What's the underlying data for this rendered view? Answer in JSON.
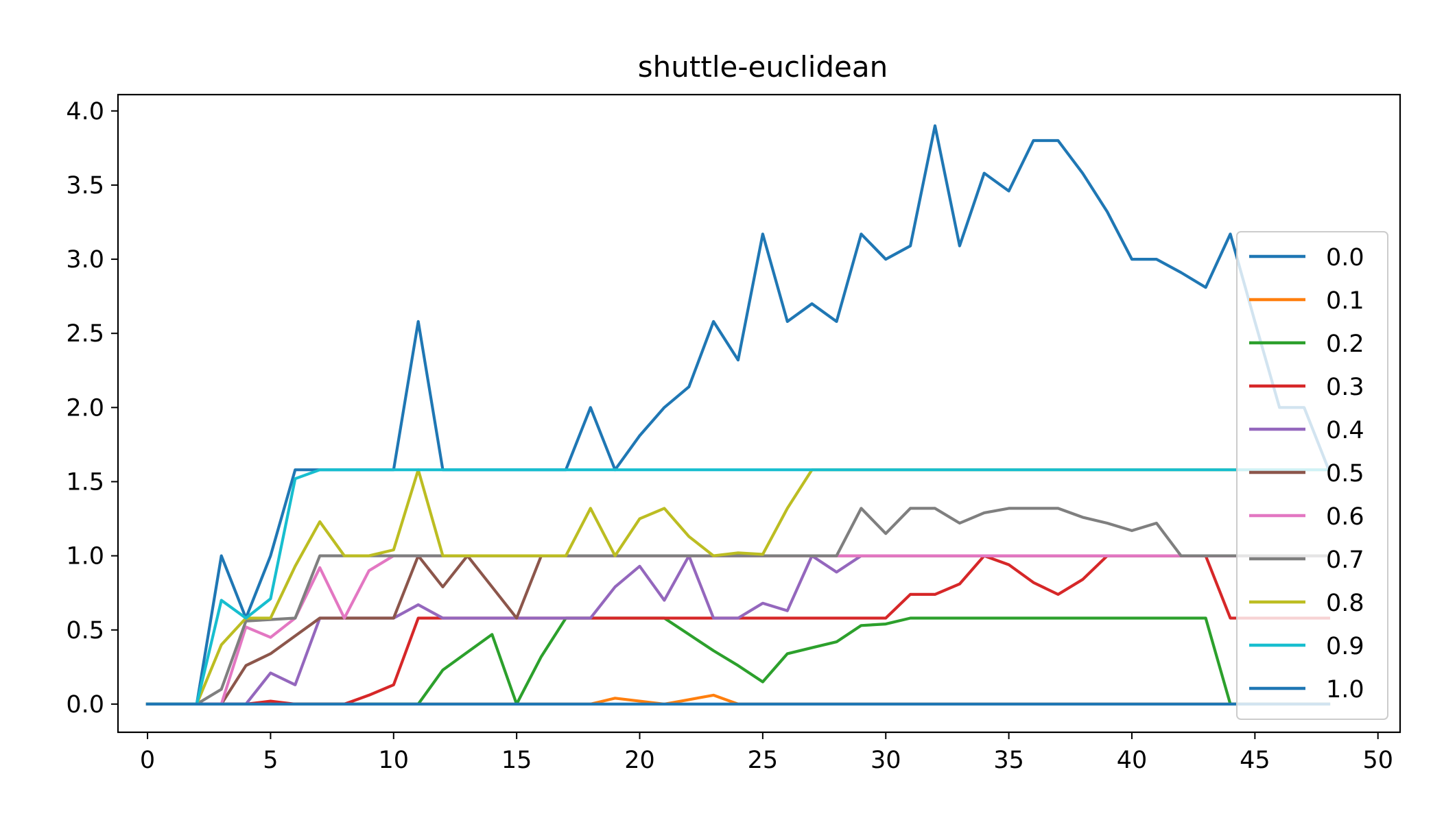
{
  "chart_data": {
    "type": "line",
    "title": "shuttle-euclidean",
    "xlabel": "",
    "ylabel": "",
    "xlim": [
      -1.2,
      50.9
    ],
    "ylim": [
      -0.19,
      4.11
    ],
    "xticks": [
      0,
      5,
      10,
      15,
      20,
      25,
      30,
      35,
      40,
      45,
      50
    ],
    "yticks": [
      0.0,
      0.5,
      1.0,
      1.5,
      2.0,
      2.5,
      3.0,
      3.5,
      4.0
    ],
    "ytick_labels": [
      "0.0",
      "0.5",
      "1.0",
      "1.5",
      "2.0",
      "2.5",
      "3.0",
      "3.5",
      "4.0"
    ],
    "legend_position": "right",
    "x": [
      0,
      1,
      2,
      3,
      4,
      5,
      6,
      7,
      8,
      9,
      10,
      11,
      12,
      13,
      14,
      15,
      16,
      17,
      18,
      19,
      20,
      21,
      22,
      23,
      24,
      25,
      26,
      27,
      28,
      29,
      30,
      31,
      32,
      33,
      34,
      35,
      36,
      37,
      38,
      39,
      40,
      41,
      42,
      43,
      44,
      45,
      46,
      47,
      48
    ],
    "series": [
      {
        "name": "0.0",
        "color": "#1f77b4",
        "values": [
          0,
          0,
          0,
          1.0,
          0.58,
          1.0,
          1.58,
          1.58,
          1.58,
          1.58,
          1.58,
          2.58,
          1.58,
          1.58,
          1.58,
          1.58,
          1.58,
          1.58,
          2.0,
          1.58,
          1.81,
          2.0,
          2.14,
          2.58,
          2.32,
          3.17,
          2.58,
          2.7,
          2.58,
          3.17,
          3.0,
          3.09,
          3.9,
          3.09,
          3.58,
          3.46,
          3.8,
          3.8,
          3.58,
          3.32,
          3.0,
          3.0,
          2.91,
          2.81,
          3.17,
          2.58,
          2.0,
          2.0,
          1.58
        ]
      },
      {
        "name": "0.1",
        "color": "#ff7f0e",
        "values": [
          0,
          0,
          0,
          0,
          0,
          0,
          0,
          0,
          0,
          0,
          0,
          0,
          0,
          0,
          0,
          0,
          0,
          0,
          0,
          0.04,
          0.02,
          0,
          0.03,
          0.06,
          0,
          0,
          0,
          0,
          0,
          0,
          0,
          0,
          0,
          0,
          0,
          0,
          0,
          0,
          0,
          0,
          0,
          0,
          0,
          0,
          0,
          0,
          0,
          0,
          0
        ]
      },
      {
        "name": "0.2",
        "color": "#2ca02c",
        "values": [
          0,
          0,
          0,
          0,
          0,
          0,
          0,
          0,
          0,
          0,
          0,
          0,
          0.23,
          0.35,
          0.47,
          0,
          0.32,
          0.58,
          0.58,
          0.58,
          0.58,
          0.58,
          0.47,
          0.36,
          0.26,
          0.15,
          0.34,
          0.38,
          0.42,
          0.53,
          0.54,
          0.58,
          0.58,
          0.58,
          0.58,
          0.58,
          0.58,
          0.58,
          0.58,
          0.58,
          0.58,
          0.58,
          0.58,
          0.58,
          0,
          0,
          0,
          0,
          0
        ]
      },
      {
        "name": "0.3",
        "color": "#d62728",
        "values": [
          0,
          0,
          0,
          0,
          0,
          0.02,
          0,
          0,
          0,
          0.06,
          0.13,
          0.58,
          0.58,
          0.58,
          0.58,
          0.58,
          0.58,
          0.58,
          0.58,
          0.58,
          0.58,
          0.58,
          0.58,
          0.58,
          0.58,
          0.58,
          0.58,
          0.58,
          0.58,
          0.58,
          0.58,
          0.74,
          0.74,
          0.81,
          1.0,
          0.94,
          0.82,
          0.74,
          0.84,
          1.0,
          1.0,
          1.0,
          1.0,
          1.0,
          0.58,
          0.58,
          0.58,
          0.58,
          0.58
        ]
      },
      {
        "name": "0.4",
        "color": "#9467bd",
        "values": [
          0,
          0,
          0,
          0,
          0,
          0.21,
          0.13,
          0.58,
          0.58,
          0.58,
          0.58,
          0.67,
          0.58,
          0.58,
          0.58,
          0.58,
          0.58,
          0.58,
          0.58,
          0.79,
          0.93,
          0.7,
          1.0,
          0.58,
          0.58,
          0.68,
          0.63,
          1.0,
          0.89,
          1.0,
          1.0,
          1.0,
          1.0,
          1.0,
          1.0,
          1.0,
          1.0,
          1.0,
          1.0,
          1.0,
          1.0,
          1.0,
          1.0,
          1.0,
          1.0,
          1.0,
          1.0,
          1.0,
          1.0
        ]
      },
      {
        "name": "0.5",
        "color": "#8c564b",
        "values": [
          0,
          0,
          0,
          0,
          0.26,
          0.34,
          0.46,
          0.58,
          0.58,
          0.58,
          0.58,
          1.0,
          0.79,
          1.0,
          0.79,
          0.58,
          1.0,
          1.0,
          1.0,
          1.0,
          1.0,
          1.0,
          1.0,
          1.0,
          1.0,
          1.0,
          1.0,
          1.0,
          1.0,
          1.0,
          1.0,
          1.0,
          1.0,
          1.0,
          1.0,
          1.0,
          1.0,
          1.0,
          1.0,
          1.0,
          1.0,
          1.0,
          1.0,
          1.0,
          1.0,
          1.0,
          1.0,
          1.0,
          1.0
        ]
      },
      {
        "name": "0.6",
        "color": "#e377c2",
        "values": [
          0,
          0,
          0,
          0,
          0.52,
          0.45,
          0.58,
          0.92,
          0.58,
          0.9,
          1.0,
          1.0,
          1.0,
          1.0,
          1.0,
          1.0,
          1.0,
          1.0,
          1.0,
          1.0,
          1.0,
          1.0,
          1.0,
          1.0,
          1.0,
          1.0,
          1.0,
          1.0,
          1.0,
          1.0,
          1.0,
          1.0,
          1.0,
          1.0,
          1.0,
          1.0,
          1.0,
          1.0,
          1.0,
          1.0,
          1.0,
          1.0,
          1.0,
          1.0,
          1.0,
          1.0,
          1.0,
          1.0,
          1.0
        ]
      },
      {
        "name": "0.7",
        "color": "#7f7f7f",
        "values": [
          0,
          0,
          0,
          0.1,
          0.56,
          0.57,
          0.58,
          1.0,
          1.0,
          1.0,
          1.0,
          1.0,
          1.0,
          1.0,
          1.0,
          1.0,
          1.0,
          1.0,
          1.0,
          1.0,
          1.0,
          1.0,
          1.0,
          1.0,
          1.0,
          1.0,
          1.0,
          1.0,
          1.0,
          1.32,
          1.15,
          1.32,
          1.32,
          1.22,
          1.29,
          1.32,
          1.32,
          1.32,
          1.26,
          1.22,
          1.17,
          1.22,
          1.0,
          1.0,
          1.0,
          1.0,
          1.0,
          1.0,
          1.0
        ]
      },
      {
        "name": "0.8",
        "color": "#bcbd22",
        "values": [
          0,
          0,
          0,
          0.4,
          0.58,
          0.58,
          0.93,
          1.23,
          1.0,
          1.0,
          1.04,
          1.58,
          1.0,
          1.0,
          1.0,
          1.0,
          1.0,
          1.0,
          1.32,
          1.0,
          1.25,
          1.32,
          1.13,
          1.0,
          1.02,
          1.01,
          1.32,
          1.58,
          1.58,
          1.58,
          1.58,
          1.58,
          1.58,
          1.58,
          1.58,
          1.58,
          1.58,
          1.58,
          1.58,
          1.58,
          1.58,
          1.58,
          1.58,
          1.58,
          1.58,
          1.58,
          1.58,
          1.58,
          1.58
        ]
      },
      {
        "name": "0.9",
        "color": "#17becf",
        "values": [
          0,
          0,
          0,
          0.7,
          0.58,
          0.71,
          1.52,
          1.58,
          1.58,
          1.58,
          1.58,
          1.58,
          1.58,
          1.58,
          1.58,
          1.58,
          1.58,
          1.58,
          1.58,
          1.58,
          1.58,
          1.58,
          1.58,
          1.58,
          1.58,
          1.58,
          1.58,
          1.58,
          1.58,
          1.58,
          1.58,
          1.58,
          1.58,
          1.58,
          1.58,
          1.58,
          1.58,
          1.58,
          1.58,
          1.58,
          1.58,
          1.58,
          1.58,
          1.58,
          1.58,
          1.58,
          1.58,
          1.58,
          1.58
        ]
      },
      {
        "name": "1.0",
        "color": "#1f77b4",
        "values": [
          0,
          0,
          0,
          0,
          0,
          0,
          0,
          0,
          0,
          0,
          0,
          0,
          0,
          0,
          0,
          0,
          0,
          0,
          0,
          0,
          0,
          0,
          0,
          0,
          0,
          0,
          0,
          0,
          0,
          0,
          0,
          0,
          0,
          0,
          0,
          0,
          0,
          0,
          0,
          0,
          0,
          0,
          0,
          0,
          0,
          0,
          0,
          0,
          0
        ]
      }
    ]
  }
}
